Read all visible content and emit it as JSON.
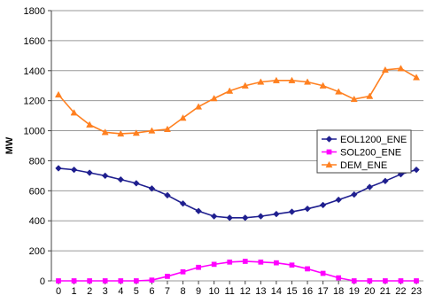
{
  "chart_data": {
    "type": "line",
    "title": "",
    "xlabel": "",
    "ylabel": "MW",
    "x": [
      0,
      1,
      2,
      3,
      4,
      5,
      6,
      7,
      8,
      9,
      10,
      11,
      12,
      13,
      14,
      15,
      16,
      17,
      18,
      19,
      20,
      21,
      22,
      23
    ],
    "ylim": [
      0,
      1800
    ],
    "yticks": [
      0,
      200,
      400,
      600,
      800,
      1000,
      1200,
      1400,
      1600,
      1800
    ],
    "grid": "horizontal",
    "legend_position": "right",
    "series": [
      {
        "name": "EOL1200_ENE",
        "color": "#1f1f8f",
        "marker": "diamond",
        "values": [
          750,
          740,
          720,
          700,
          675,
          650,
          615,
          570,
          515,
          465,
          430,
          420,
          420,
          430,
          445,
          460,
          480,
          505,
          540,
          575,
          625,
          665,
          710,
          740
        ]
      },
      {
        "name": "SOL200_ENE",
        "color": "#ff00ff",
        "marker": "square",
        "values": [
          0,
          0,
          0,
          0,
          0,
          0,
          5,
          30,
          60,
          90,
          110,
          125,
          130,
          125,
          120,
          105,
          80,
          50,
          20,
          0,
          0,
          0,
          0,
          0
        ]
      },
      {
        "name": "DEM_ENE",
        "color": "#ff8020",
        "marker": "triangle",
        "values": [
          1240,
          1120,
          1040,
          990,
          980,
          985,
          1000,
          1010,
          1085,
          1160,
          1215,
          1265,
          1300,
          1325,
          1335,
          1335,
          1325,
          1300,
          1260,
          1210,
          1230,
          1405,
          1415,
          1355
        ]
      }
    ]
  }
}
